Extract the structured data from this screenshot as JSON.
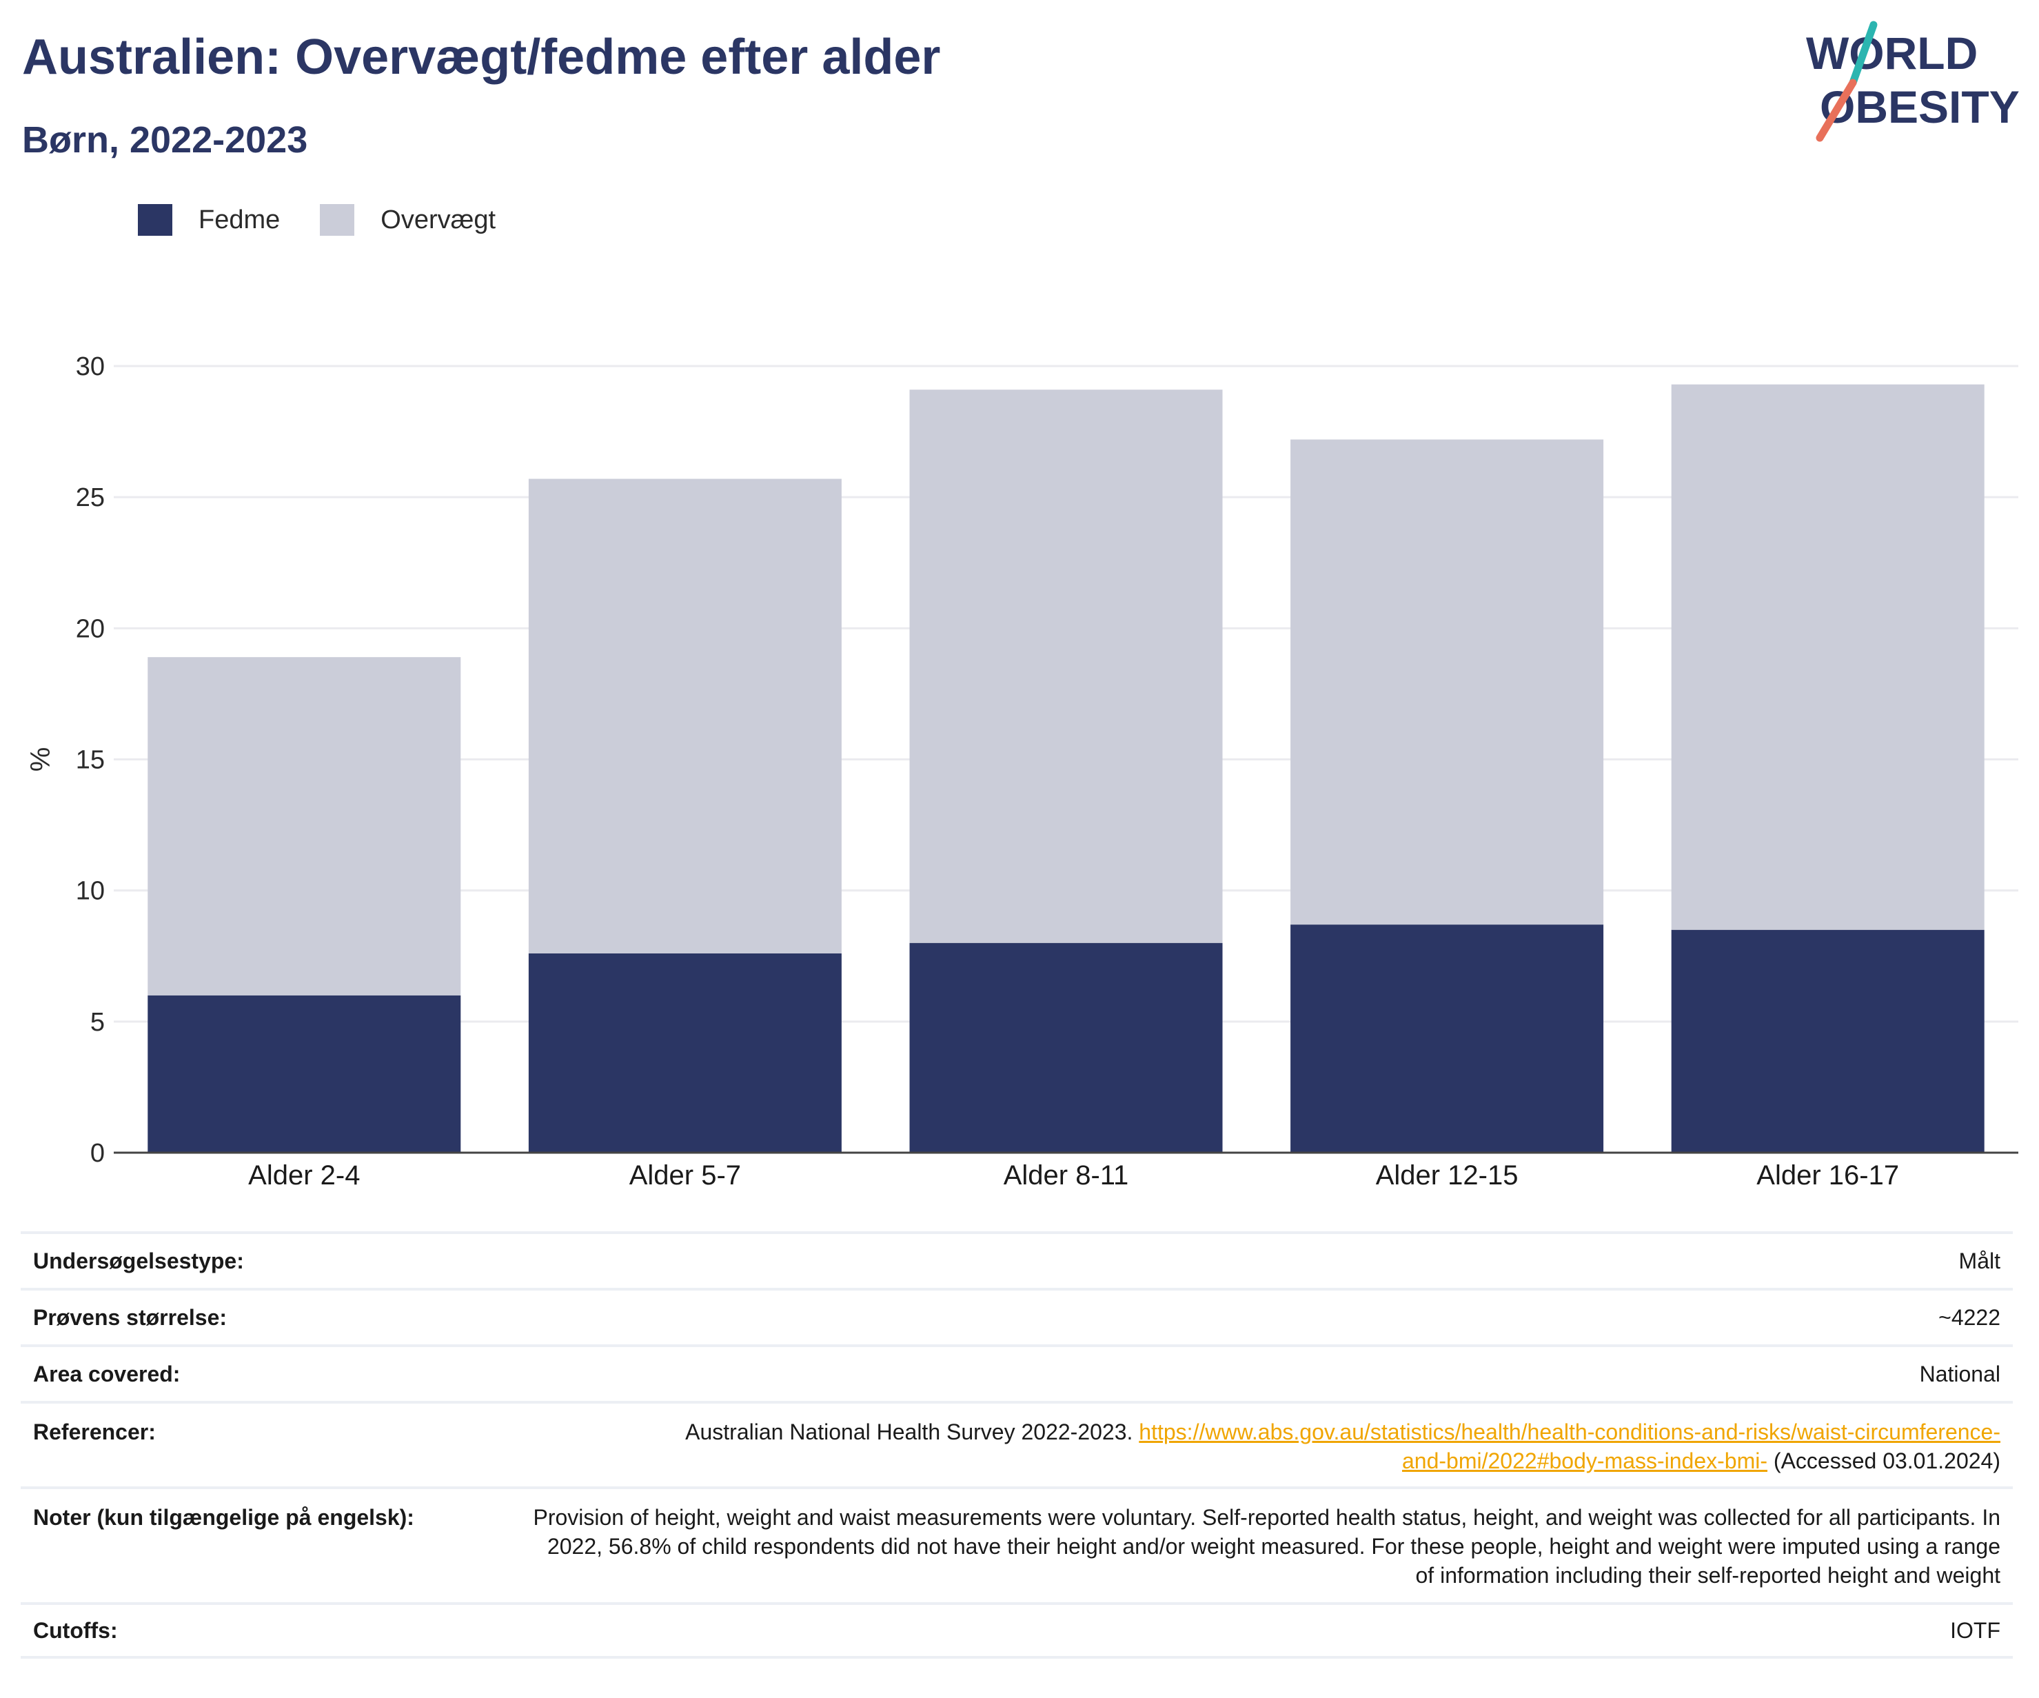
{
  "header": {
    "title": "Australien: Overvægt/fedme efter alder",
    "subtitle": "Børn, 2022-2023"
  },
  "logo": {
    "line1": "WORLD",
    "line2": "OBESITY",
    "colors": {
      "text": "#2b3664",
      "slash_top": "#2bb5b0",
      "slash_bottom": "#e8705a"
    }
  },
  "legend": [
    {
      "label": "Fedme",
      "color": "#2b3664"
    },
    {
      "label": "Overvægt",
      "color": "#cbcdd9"
    }
  ],
  "chart_data": {
    "type": "bar",
    "stacked": true,
    "categories": [
      "Alder 2-4",
      "Alder 5-7",
      "Alder 8-11",
      "Alder 12-15",
      "Alder 16-17"
    ],
    "series": [
      {
        "name": "Fedme",
        "values": [
          6.0,
          7.6,
          8.0,
          8.7,
          8.5
        ],
        "color": "#2b3664"
      },
      {
        "name": "Overvægt",
        "values": [
          12.9,
          18.1,
          21.1,
          18.5,
          20.8
        ],
        "color": "#cbcdd9"
      }
    ],
    "ylabel": "%",
    "ylim": [
      0,
      30
    ],
    "yticks": [
      0,
      5,
      10,
      15,
      20,
      25,
      30
    ],
    "grid": true,
    "legend_position": "top-left"
  },
  "info_table": [
    {
      "label": "Undersøgelsestype:",
      "value": "Målt"
    },
    {
      "label": "Prøvens størrelse:",
      "value": "~4222"
    },
    {
      "label": "Area covered:",
      "value": "National"
    },
    {
      "label": "Referencer:",
      "value_prefix": "Australian National Health Survey 2022-2023.",
      "link": "https://www.abs.gov.au/statistics/health/health-conditions-and-risks/waist-circumference-and-bmi/2022#body-mass-index-bmi-",
      "value_suffix": "(Accessed 03.01.2024)"
    },
    {
      "label": "Noter (kun tilgængelige på engelsk):",
      "value": "Provision of height, weight and waist measurements were voluntary. Self-reported health status, height, and weight was collected for all participants. In 2022, 56.8% of child respondents did not have their height and/or weight measured. For these people, height and weight were imputed using a range of information including their self-reported height and weight"
    },
    {
      "label": "Cutoffs:",
      "value": "IOTF"
    }
  ]
}
